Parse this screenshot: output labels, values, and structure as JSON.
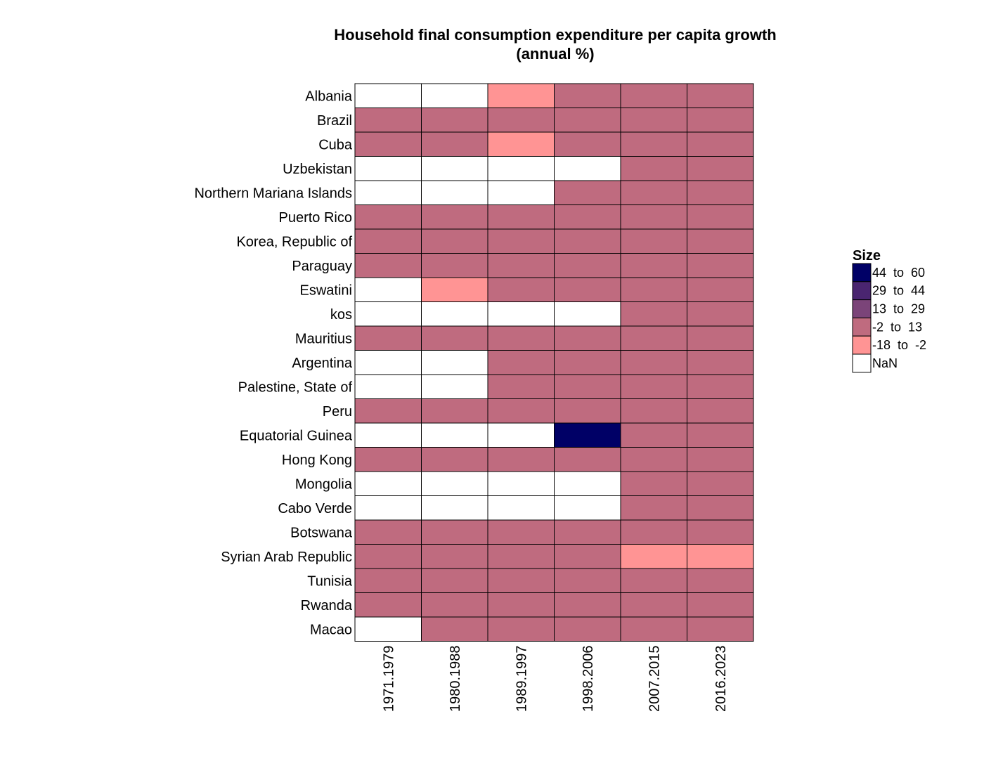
{
  "chart_data": {
    "type": "heatmap",
    "title_lines": [
      "Household final consumption expenditure per capita growth",
      "(annual %)"
    ],
    "xlabel": "",
    "ylabel": "",
    "columns": [
      "1971.1979",
      "1980.1988",
      "1989.1997",
      "1998.2006",
      "2007.2015",
      "2016.2023"
    ],
    "rows": [
      "Albania",
      "Brazil",
      "Cuba",
      "Uzbekistan",
      "Northern Mariana Islands",
      "Puerto Rico",
      "Korea, Republic of",
      "Paraguay",
      "Eswatini",
      "kos",
      "Mauritius",
      "Argentina",
      "Palestine, State of",
      "Peru",
      "Equatorial Guinea",
      "Hong Kong",
      "Mongolia",
      "Cabo Verde",
      "Botswana",
      "Syrian Arab Republic",
      "Tunisia",
      "Rwanda",
      "Macao"
    ],
    "values": [
      [
        "NaN",
        "NaN",
        "-18 to -2",
        "-2 to 13",
        "-2 to 13",
        "-2 to 13"
      ],
      [
        "-2 to 13",
        "-2 to 13",
        "-2 to 13",
        "-2 to 13",
        "-2 to 13",
        "-2 to 13"
      ],
      [
        "-2 to 13",
        "-2 to 13",
        "-18 to -2",
        "-2 to 13",
        "-2 to 13",
        "-2 to 13"
      ],
      [
        "NaN",
        "NaN",
        "NaN",
        "NaN",
        "-2 to 13",
        "-2 to 13"
      ],
      [
        "NaN",
        "NaN",
        "NaN",
        "-2 to 13",
        "-2 to 13",
        "-2 to 13"
      ],
      [
        "-2 to 13",
        "-2 to 13",
        "-2 to 13",
        "-2 to 13",
        "-2 to 13",
        "-2 to 13"
      ],
      [
        "-2 to 13",
        "-2 to 13",
        "-2 to 13",
        "-2 to 13",
        "-2 to 13",
        "-2 to 13"
      ],
      [
        "-2 to 13",
        "-2 to 13",
        "-2 to 13",
        "-2 to 13",
        "-2 to 13",
        "-2 to 13"
      ],
      [
        "NaN",
        "-18 to -2",
        "-2 to 13",
        "-2 to 13",
        "-2 to 13",
        "-2 to 13"
      ],
      [
        "NaN",
        "NaN",
        "NaN",
        "NaN",
        "-2 to 13",
        "-2 to 13"
      ],
      [
        "-2 to 13",
        "-2 to 13",
        "-2 to 13",
        "-2 to 13",
        "-2 to 13",
        "-2 to 13"
      ],
      [
        "NaN",
        "NaN",
        "-2 to 13",
        "-2 to 13",
        "-2 to 13",
        "-2 to 13"
      ],
      [
        "NaN",
        "NaN",
        "-2 to 13",
        "-2 to 13",
        "-2 to 13",
        "-2 to 13"
      ],
      [
        "-2 to 13",
        "-2 to 13",
        "-2 to 13",
        "-2 to 13",
        "-2 to 13",
        "-2 to 13"
      ],
      [
        "NaN",
        "NaN",
        "NaN",
        "44 to 60",
        "-2 to 13",
        "-2 to 13"
      ],
      [
        "-2 to 13",
        "-2 to 13",
        "-2 to 13",
        "-2 to 13",
        "-2 to 13",
        "-2 to 13"
      ],
      [
        "NaN",
        "NaN",
        "NaN",
        "NaN",
        "-2 to 13",
        "-2 to 13"
      ],
      [
        "NaN",
        "NaN",
        "NaN",
        "NaN",
        "-2 to 13",
        "-2 to 13"
      ],
      [
        "-2 to 13",
        "-2 to 13",
        "-2 to 13",
        "-2 to 13",
        "-2 to 13",
        "-2 to 13"
      ],
      [
        "-2 to 13",
        "-2 to 13",
        "-2 to 13",
        "-2 to 13",
        "-18 to -2",
        "-18 to -2"
      ],
      [
        "-2 to 13",
        "-2 to 13",
        "-2 to 13",
        "-2 to 13",
        "-2 to 13",
        "-2 to 13"
      ],
      [
        "-2 to 13",
        "-2 to 13",
        "-2 to 13",
        "-2 to 13",
        "-2 to 13",
        "-2 to 13"
      ],
      [
        "NaN",
        "-2 to 13",
        "-2 to 13",
        "-2 to 13",
        "-2 to 13",
        "-2 to 13"
      ]
    ],
    "legend": {
      "title": "Size",
      "placement": "right",
      "items": [
        {
          "label": "44  to  60",
          "bin": "44 to 60",
          "color": "#000066"
        },
        {
          "label": "29  to  44",
          "bin": "29 to 44",
          "color": "#4a2570"
        },
        {
          "label": "13  to  29",
          "bin": "13 to 29",
          "color": "#7b4479"
        },
        {
          "label": "-2  to  13",
          "bin": "-2 to 13",
          "color": "#bf6b7f"
        },
        {
          "label": "-18  to  -2",
          "bin": "-18 to -2",
          "color": "#ff9494"
        },
        {
          "label": "NaN",
          "bin": "NaN",
          "color": "#ffffff"
        }
      ]
    },
    "grid": false
  }
}
